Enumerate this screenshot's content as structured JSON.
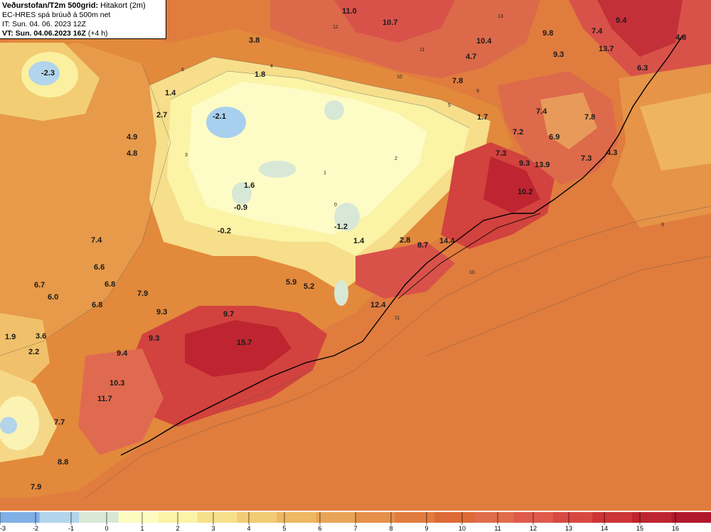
{
  "header": {
    "title": "Veðurstofan/T2m 500grid:",
    "subtitle": "Hitakort (2m)",
    "line2": "EC-HRES spá brúuð á 500m net",
    "line3": "IT: Sun. 04. 06. 2023 12Z",
    "line4_prefix": "VT: Sun. 04.06.2023 16Z",
    "line4_suffix": "(+4 h)"
  },
  "legend": {
    "ticks": [
      "-3",
      "-2",
      "-1",
      "0",
      "1",
      "2",
      "3",
      "4",
      "5",
      "6",
      "7",
      "8",
      "9",
      "10",
      "11",
      "12",
      "13",
      "14",
      "15",
      "16"
    ],
    "colors": [
      "#7fb0e6",
      "#b2d4ec",
      "#d8e8d6",
      "#fdfcc0",
      "#fbf3a6",
      "#f6e08a",
      "#f2cc72",
      "#eeb862",
      "#eaa457",
      "#e6904a",
      "#e27c3e",
      "#dd6a36",
      "#e16c4c",
      "#e05a4c",
      "#d84842",
      "#cc3436",
      "#bf2530",
      "#b2182b"
    ]
  },
  "temperatures": [
    {
      "v": "11.0"
    },
    {
      "v": "10.7"
    },
    {
      "v": "10.4"
    },
    {
      "v": "9.8"
    },
    {
      "v": "7.4"
    },
    {
      "v": "9.4"
    },
    {
      "v": "4.8"
    },
    {
      "v": "-2.3"
    },
    {
      "v": "3.8"
    },
    {
      "v": "4.7"
    },
    {
      "v": "9.3"
    },
    {
      "v": "13.7"
    },
    {
      "v": "6.3"
    },
    {
      "v": "1.8"
    },
    {
      "v": "1.4"
    },
    {
      "v": "7.8"
    },
    {
      "v": "-2.1"
    },
    {
      "v": "2.7"
    },
    {
      "v": "1.7"
    },
    {
      "v": "7.4"
    },
    {
      "v": "7.8"
    },
    {
      "v": "4.9"
    },
    {
      "v": "7.2"
    },
    {
      "v": "6.9"
    },
    {
      "v": "4.8"
    },
    {
      "v": "7.3"
    },
    {
      "v": "4.3"
    },
    {
      "v": "9.3"
    },
    {
      "v": "13.9"
    },
    {
      "v": "7.3"
    },
    {
      "v": "1.6"
    },
    {
      "v": "10.2"
    },
    {
      "v": "-0.9"
    },
    {
      "v": "-0.2"
    },
    {
      "v": "-1.2"
    },
    {
      "v": "7.4"
    },
    {
      "v": "2.8"
    },
    {
      "v": "8.7"
    },
    {
      "v": "14.4"
    },
    {
      "v": "1.4"
    },
    {
      "v": "6.6"
    },
    {
      "v": "5.9"
    },
    {
      "v": "6.7"
    },
    {
      "v": "5.2"
    },
    {
      "v": "6.8"
    },
    {
      "v": "6.0"
    },
    {
      "v": "7.9"
    },
    {
      "v": "6.8"
    },
    {
      "v": "12.4"
    },
    {
      "v": "9.3"
    },
    {
      "v": "9.7"
    },
    {
      "v": "1.9"
    },
    {
      "v": "3.6"
    },
    {
      "v": "9.3"
    },
    {
      "v": "15.7"
    },
    {
      "v": "2.2"
    },
    {
      "v": "9.4"
    },
    {
      "v": "10.3"
    },
    {
      "v": "11.7"
    },
    {
      "v": "7.7"
    },
    {
      "v": "8.8"
    },
    {
      "v": "7.9"
    }
  ],
  "contour_labels": [
    "12",
    "11",
    "13",
    "10",
    "9",
    "5",
    "6",
    "4",
    "3",
    "2",
    "1",
    "0",
    "9",
    "10",
    "11"
  ]
}
